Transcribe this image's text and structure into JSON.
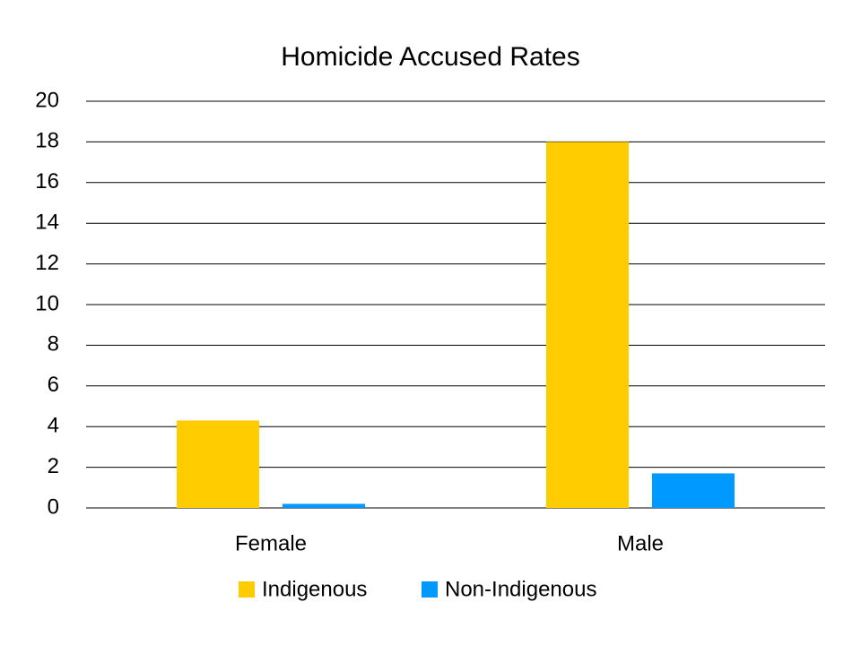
{
  "chart_data": {
    "type": "bar",
    "title": "Homicide Accused Rates",
    "categories": [
      "Female",
      "Male"
    ],
    "series": [
      {
        "name": "Indigenous",
        "color": "#ffcc00",
        "values": [
          4.3,
          18.0
        ]
      },
      {
        "name": "Non-Indigenous",
        "color": "#0099ff",
        "values": [
          0.2,
          1.7
        ]
      }
    ],
    "ylim": [
      0,
      20
    ],
    "yticks": [
      0,
      2,
      4,
      6,
      8,
      10,
      12,
      14,
      16,
      18,
      20
    ],
    "grid": true,
    "legend": "bottom"
  }
}
